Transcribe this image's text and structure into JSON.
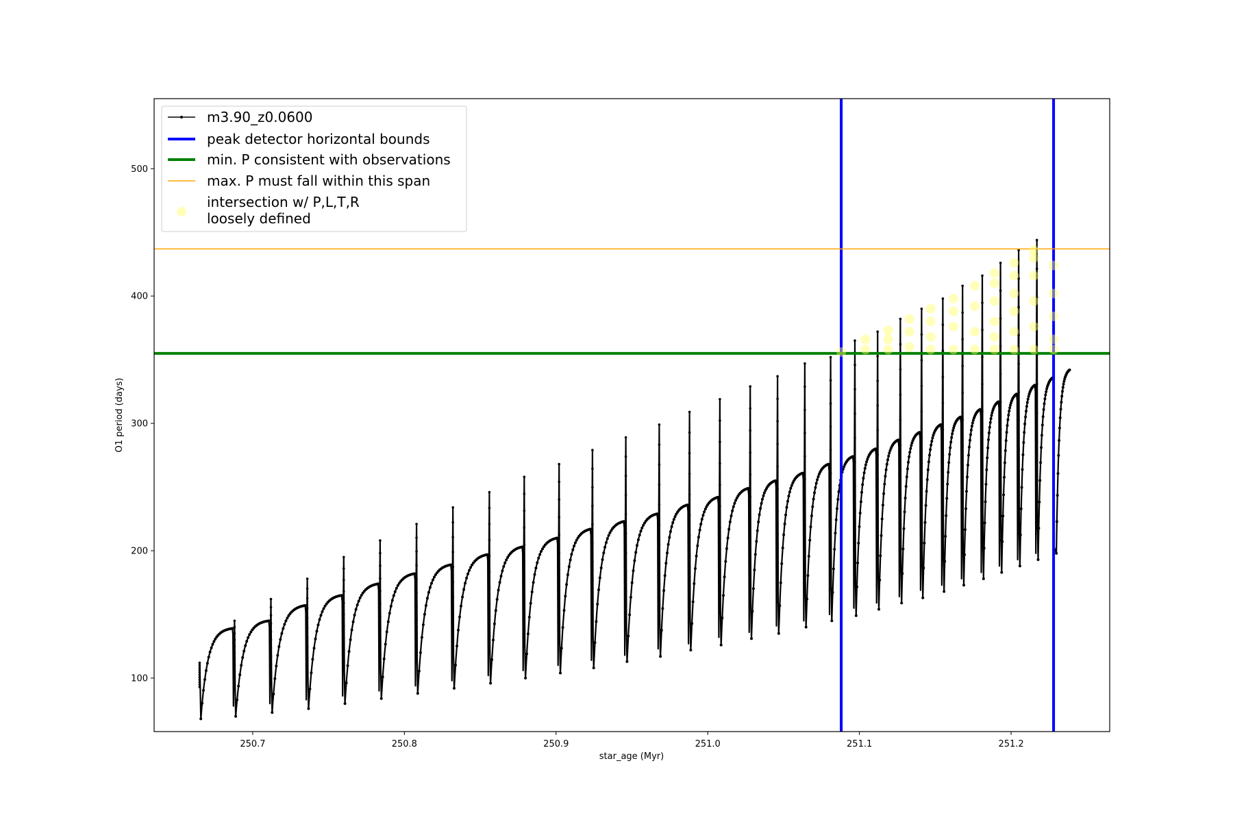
{
  "chart_data": {
    "type": "line",
    "xlabel": "star_age (Myr)",
    "ylabel": "O1 period (days)",
    "xlim": [
      250.635,
      251.265
    ],
    "ylim": [
      58,
      555
    ],
    "x_ticks": [
      "250.7",
      "250.8",
      "250.9",
      "251.0",
      "251.1",
      "251.2"
    ],
    "y_ticks": [
      "100",
      "200",
      "300",
      "400",
      "500"
    ],
    "grid": false,
    "legend_placement": "top-left",
    "series": [
      {
        "name": "m3.90_z0.0600",
        "color": "#000000",
        "style": "line-with-point-markers",
        "pulses": [
          {
            "start": 250.665,
            "end": 250.687,
            "min": 68,
            "max": 139,
            "spike": 112
          },
          {
            "start": 250.688,
            "end": 250.711,
            "min": 70,
            "max": 145,
            "spike": 145
          },
          {
            "start": 250.712,
            "end": 250.735,
            "min": 73,
            "max": 157,
            "spike": 162
          },
          {
            "start": 250.736,
            "end": 250.759,
            "min": 76,
            "max": 165,
            "spike": 178
          },
          {
            "start": 250.76,
            "end": 250.783,
            "min": 80,
            "max": 174,
            "spike": 195
          },
          {
            "start": 250.784,
            "end": 250.807,
            "min": 84,
            "max": 182,
            "spike": 208
          },
          {
            "start": 250.808,
            "end": 250.831,
            "min": 88,
            "max": 189,
            "spike": 221
          },
          {
            "start": 250.832,
            "end": 250.855,
            "min": 92,
            "max": 197,
            "spike": 234
          },
          {
            "start": 250.856,
            "end": 250.878,
            "min": 96,
            "max": 203,
            "spike": 246
          },
          {
            "start": 250.879,
            "end": 250.901,
            "min": 100,
            "max": 210,
            "spike": 258
          },
          {
            "start": 250.902,
            "end": 250.923,
            "min": 104,
            "max": 217,
            "spike": 268
          },
          {
            "start": 250.924,
            "end": 250.945,
            "min": 108,
            "max": 223,
            "spike": 279
          },
          {
            "start": 250.946,
            "end": 250.967,
            "min": 113,
            "max": 229,
            "spike": 289
          },
          {
            "start": 250.968,
            "end": 250.987,
            "min": 117,
            "max": 236,
            "spike": 299
          },
          {
            "start": 250.988,
            "end": 251.007,
            "min": 122,
            "max": 242,
            "spike": 309
          },
          {
            "start": 251.008,
            "end": 251.027,
            "min": 126,
            "max": 249,
            "spike": 319
          },
          {
            "start": 251.028,
            "end": 251.045,
            "min": 131,
            "max": 255,
            "spike": 329
          },
          {
            "start": 251.046,
            "end": 251.063,
            "min": 135,
            "max": 261,
            "spike": 337
          },
          {
            "start": 251.064,
            "end": 251.08,
            "min": 140,
            "max": 268,
            "spike": 347
          },
          {
            "start": 251.081,
            "end": 251.096,
            "min": 145,
            "max": 274,
            "spike": 352
          },
          {
            "start": 251.097,
            "end": 251.111,
            "min": 149,
            "max": 280,
            "spike": 365
          },
          {
            "start": 251.112,
            "end": 251.126,
            "min": 154,
            "max": 287,
            "spike": 372
          },
          {
            "start": 251.127,
            "end": 251.14,
            "min": 159,
            "max": 293,
            "spike": 382
          },
          {
            "start": 251.141,
            "end": 251.154,
            "min": 163,
            "max": 299,
            "spike": 390
          },
          {
            "start": 251.155,
            "end": 251.167,
            "min": 168,
            "max": 305,
            "spike": 398
          },
          {
            "start": 251.168,
            "end": 251.18,
            "min": 173,
            "max": 311,
            "spike": 408
          },
          {
            "start": 251.181,
            "end": 251.192,
            "min": 178,
            "max": 317,
            "spike": 416
          },
          {
            "start": 251.193,
            "end": 251.204,
            "min": 183,
            "max": 323,
            "spike": 426
          },
          {
            "start": 251.205,
            "end": 251.216,
            "min": 188,
            "max": 330,
            "spike": 436
          },
          {
            "start": 251.217,
            "end": 251.228,
            "min": 193,
            "max": 336,
            "spike": 444
          },
          {
            "start": 251.229,
            "end": 251.239,
            "min": 198,
            "max": 342,
            "spike": 0
          }
        ]
      },
      {
        "name": "peak detector horizontal bounds",
        "color": "#0000ff",
        "type": "vline",
        "x": [
          251.088,
          251.228
        ]
      },
      {
        "name": "min. P consistent with observations",
        "color": "#008000",
        "type": "hline",
        "y": 355
      },
      {
        "name": "max. P must fall within this span",
        "color": "#ffa500",
        "type": "hline",
        "y": 437
      },
      {
        "name": "intersection w/ P,L,T,R\nloosely defined",
        "color": "#ffff66",
        "type": "scatter",
        "points": [
          [
            251.088,
            356
          ],
          [
            251.104,
            358
          ],
          [
            251.104,
            366
          ],
          [
            251.119,
            358
          ],
          [
            251.119,
            366
          ],
          [
            251.119,
            373
          ],
          [
            251.133,
            360
          ],
          [
            251.133,
            372
          ],
          [
            251.133,
            382
          ],
          [
            251.147,
            358
          ],
          [
            251.147,
            368
          ],
          [
            251.147,
            380
          ],
          [
            251.147,
            390
          ],
          [
            251.162,
            358
          ],
          [
            251.162,
            376
          ],
          [
            251.162,
            388
          ],
          [
            251.162,
            398
          ],
          [
            251.176,
            358
          ],
          [
            251.176,
            372
          ],
          [
            251.176,
            392
          ],
          [
            251.176,
            408
          ],
          [
            251.189,
            358
          ],
          [
            251.189,
            368
          ],
          [
            251.189,
            380
          ],
          [
            251.189,
            396
          ],
          [
            251.189,
            410
          ],
          [
            251.189,
            418
          ],
          [
            251.202,
            358
          ],
          [
            251.202,
            372
          ],
          [
            251.202,
            388
          ],
          [
            251.202,
            402
          ],
          [
            251.202,
            416
          ],
          [
            251.202,
            426
          ],
          [
            251.215,
            358
          ],
          [
            251.215,
            376
          ],
          [
            251.215,
            396
          ],
          [
            251.215,
            416
          ],
          [
            251.215,
            430
          ],
          [
            251.215,
            436
          ],
          [
            251.228,
            358
          ],
          [
            251.228,
            366
          ],
          [
            251.228,
            384
          ],
          [
            251.228,
            402
          ],
          [
            251.228,
            424
          ]
        ]
      }
    ]
  }
}
